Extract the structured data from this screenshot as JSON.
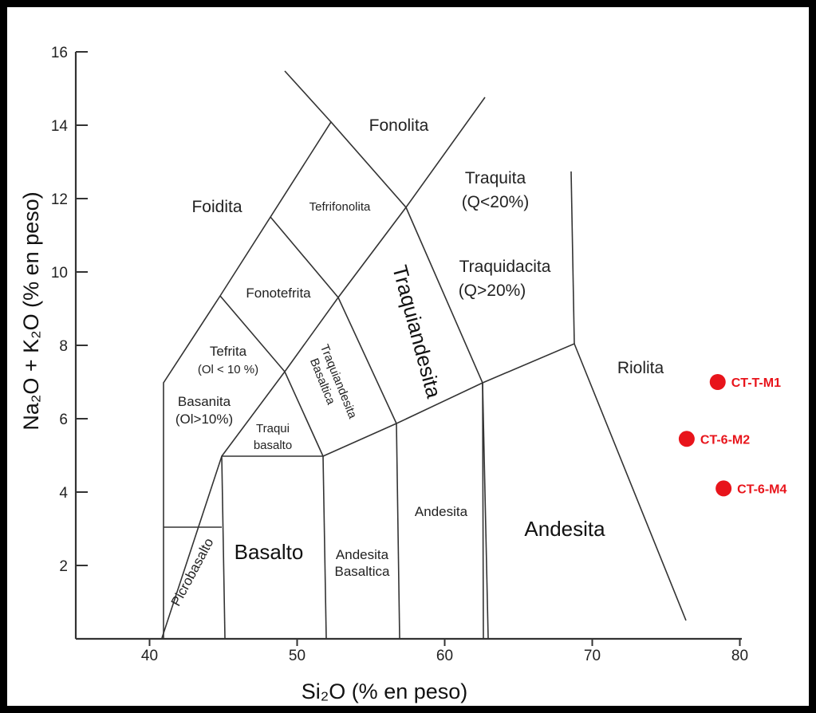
{
  "chart_data": {
    "type": "scatter",
    "xlabel": "Si₂O (% en peso)",
    "ylabel": "Na₂O + K₂O (% en peso)",
    "xlim": [
      35,
      80
    ],
    "ylim": [
      0,
      16
    ],
    "xticks": [
      40,
      50,
      60,
      70,
      80
    ],
    "yticks": [
      2,
      4,
      6,
      8,
      10,
      12,
      14,
      16
    ],
    "fields": [
      {
        "name": "Fonolita"
      },
      {
        "name": "Foidita"
      },
      {
        "name": "Tefrifonolita"
      },
      {
        "name": "Traquita"
      },
      {
        "name": "(Q<20%)"
      },
      {
        "name": "Fonotefrita"
      },
      {
        "name": "Traquiandesita"
      },
      {
        "name": "Traquidacita"
      },
      {
        "name": "(Q>20%)"
      },
      {
        "name": "Tefrita"
      },
      {
        "name": "(Ol < 10 %)"
      },
      {
        "name": "Traquiandesita"
      },
      {
        "name": "Basaltica"
      },
      {
        "name": "Riolita"
      },
      {
        "name": "Basanita"
      },
      {
        "name": "(Ol>10%)"
      },
      {
        "name": "Traqui"
      },
      {
        "name": "basalto"
      },
      {
        "name": "Andesita"
      },
      {
        "name": "Andesita"
      },
      {
        "name": "Basalto"
      },
      {
        "name": "Andesita"
      },
      {
        "name": "Basaltica"
      },
      {
        "name": "Picrobasalto"
      }
    ],
    "points": [
      {
        "label": "CT-T-M1",
        "x": 78.5,
        "y": 7.0
      },
      {
        "label": "CT-6-M2",
        "x": 76.4,
        "y": 5.45
      },
      {
        "label": "CT-6-M4",
        "x": 78.9,
        "y": 4.1
      }
    ],
    "colors": {
      "points": "#e8141b",
      "lines": "#333333"
    }
  }
}
